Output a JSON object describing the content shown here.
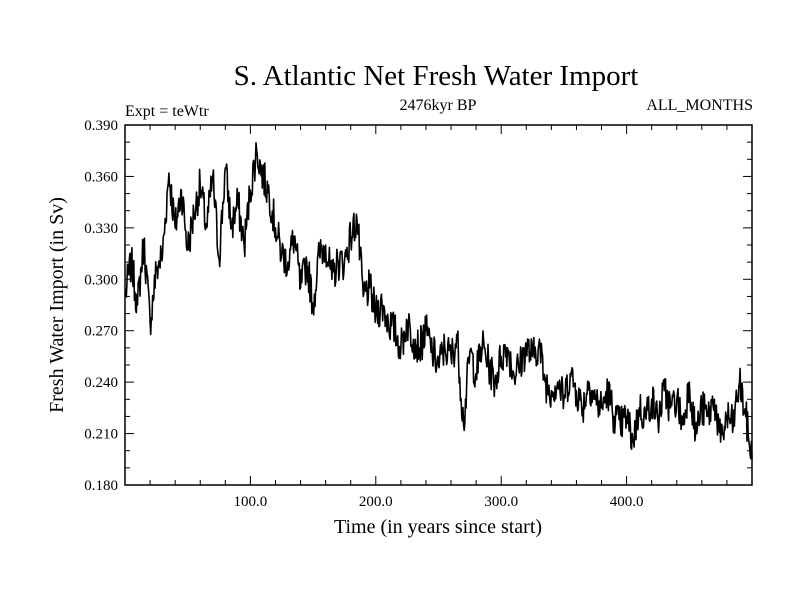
{
  "chart_data": {
    "type": "line",
    "title": "S. Atlantic Net Fresh Water Import",
    "subtitle_left": "Expt = teWtr",
    "subtitle_center": "2476kyr BP",
    "subtitle_right": "ALL_MONTHS",
    "xlabel": "Time (in years since start)",
    "ylabel": "Fresh Water Import (in Sv)",
    "xlim": [
      0,
      500
    ],
    "ylim": [
      0.18,
      0.39
    ],
    "xticks": [
      100,
      200,
      300,
      400
    ],
    "xtick_labels": [
      "100.0",
      "200.0",
      "300.0",
      "400.0"
    ],
    "yticks": [
      0.18,
      0.21,
      0.24,
      0.27,
      0.3,
      0.33,
      0.36,
      0.39
    ],
    "ytick_labels": [
      "0.180",
      "0.210",
      "0.240",
      "0.270",
      "0.300",
      "0.330",
      "0.360",
      "0.390"
    ],
    "grid": false,
    "series": [
      {
        "name": "Fresh Water Import",
        "x": [
          0,
          5,
          10,
          15,
          20,
          25,
          30,
          35,
          40,
          45,
          50,
          55,
          60,
          65,
          70,
          75,
          80,
          85,
          90,
          95,
          100,
          105,
          110,
          115,
          120,
          125,
          130,
          135,
          140,
          145,
          150,
          155,
          160,
          165,
          170,
          175,
          180,
          185,
          190,
          195,
          200,
          205,
          210,
          215,
          220,
          225,
          230,
          235,
          240,
          245,
          250,
          255,
          260,
          265,
          270,
          275,
          280,
          285,
          290,
          295,
          300,
          305,
          310,
          315,
          320,
          325,
          330,
          335,
          340,
          345,
          350,
          355,
          360,
          365,
          370,
          375,
          380,
          385,
          390,
          395,
          400,
          405,
          410,
          415,
          420,
          425,
          430,
          435,
          440,
          445,
          450,
          455,
          460,
          465,
          470,
          475,
          480,
          485,
          490,
          495,
          500
        ],
        "values": [
          0.29,
          0.31,
          0.285,
          0.322,
          0.275,
          0.305,
          0.315,
          0.362,
          0.33,
          0.352,
          0.318,
          0.338,
          0.355,
          0.33,
          0.36,
          0.312,
          0.365,
          0.33,
          0.345,
          0.32,
          0.352,
          0.375,
          0.36,
          0.35,
          0.33,
          0.315,
          0.31,
          0.325,
          0.295,
          0.31,
          0.285,
          0.315,
          0.32,
          0.3,
          0.31,
          0.31,
          0.325,
          0.335,
          0.29,
          0.295,
          0.28,
          0.285,
          0.275,
          0.27,
          0.26,
          0.275,
          0.265,
          0.26,
          0.27,
          0.258,
          0.25,
          0.26,
          0.255,
          0.265,
          0.215,
          0.258,
          0.245,
          0.262,
          0.25,
          0.24,
          0.255,
          0.26,
          0.245,
          0.25,
          0.26,
          0.255,
          0.262,
          0.24,
          0.235,
          0.24,
          0.23,
          0.245,
          0.235,
          0.225,
          0.24,
          0.23,
          0.225,
          0.235,
          0.22,
          0.215,
          0.22,
          0.205,
          0.225,
          0.22,
          0.23,
          0.218,
          0.235,
          0.225,
          0.23,
          0.215,
          0.24,
          0.21,
          0.225,
          0.22,
          0.23,
          0.205,
          0.22,
          0.215,
          0.24,
          0.22,
          0.195
        ]
      }
    ]
  }
}
